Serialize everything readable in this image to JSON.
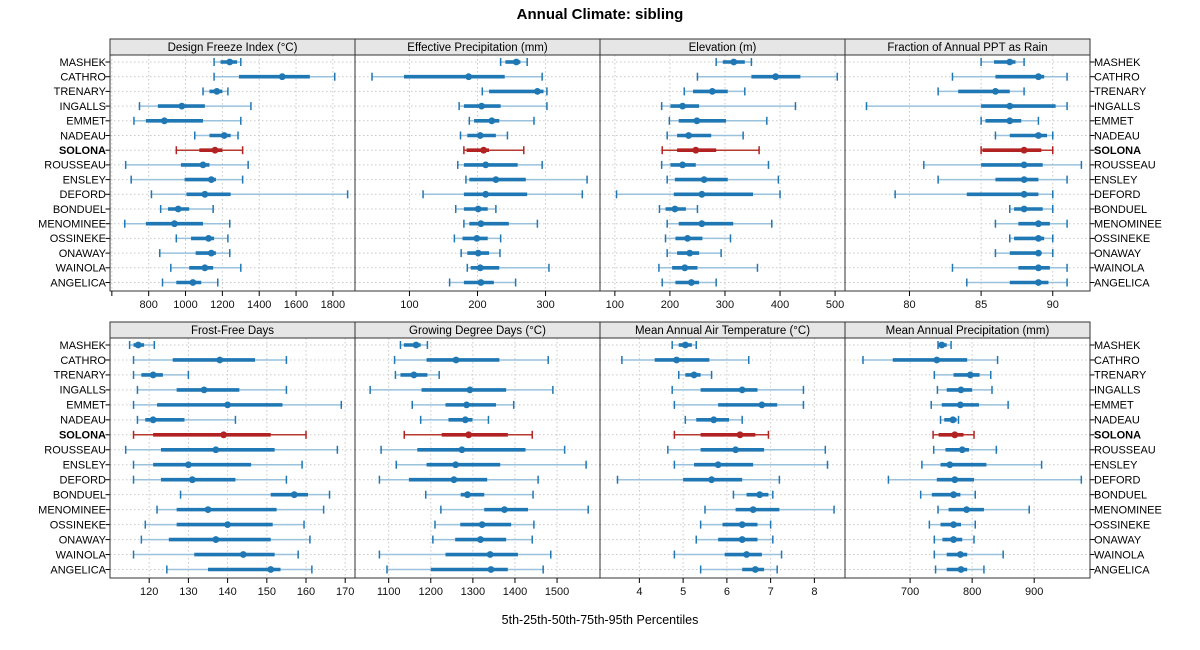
{
  "title": "Annual Climate: sibling",
  "caption": "5th-25th-50th-75th-95th Percentiles",
  "highlight_site": "SOLONA",
  "sites": [
    "MASHEK",
    "CATHRO",
    "TRENARY",
    "INGALLS",
    "EMMET",
    "NADEAU",
    "SOLONA",
    "ROUSSEAU",
    "ENSLEY",
    "DEFORD",
    "BONDUEL",
    "MENOMINEE",
    "OSSINEKE",
    "ONAWAY",
    "WAINOLA",
    "ANGELICA"
  ],
  "colors": {
    "main": "#1f77b4",
    "main_light": "#9ac2dd",
    "highlight": "#b22222",
    "highlight_light": "#b83a2e"
  },
  "chart_data": {
    "type": "dotplot-intervals",
    "percentiles": [
      5,
      25,
      50,
      75,
      95
    ],
    "legend_position": "none",
    "grid": "dotted",
    "panels": [
      {
        "title": "Design Freeze Index (°C)",
        "ticks": [
          800,
          1000,
          1200,
          1400,
          1600,
          1800
        ],
        "extra_ticks": [
          600
        ],
        "xlim": [
          590,
          1920
        ],
        "values": [
          [
            1155,
            1190,
            1240,
            1280,
            1300
          ],
          [
            1155,
            1290,
            1525,
            1675,
            1810
          ],
          [
            1095,
            1130,
            1170,
            1200,
            1230
          ],
          [
            750,
            850,
            980,
            1105,
            1355
          ],
          [
            720,
            785,
            885,
            1095,
            1300
          ],
          [
            1050,
            1130,
            1210,
            1245,
            1285
          ],
          [
            950,
            1075,
            1160,
            1200,
            1310
          ],
          [
            675,
            975,
            1095,
            1130,
            1340
          ],
          [
            705,
            995,
            1140,
            1165,
            1310
          ],
          [
            815,
            1005,
            1105,
            1245,
            1880
          ],
          [
            865,
            905,
            960,
            1020,
            1150
          ],
          [
            670,
            785,
            940,
            1095,
            1240
          ],
          [
            950,
            1030,
            1125,
            1155,
            1230
          ],
          [
            860,
            1055,
            1140,
            1165,
            1240
          ],
          [
            920,
            1020,
            1105,
            1150,
            1300
          ],
          [
            875,
            950,
            1040,
            1085,
            1175
          ]
        ]
      },
      {
        "title": "Effective Precipitation (mm)",
        "ticks": [
          100,
          200,
          300
        ],
        "xlim": [
          20,
          380
        ],
        "values": [
          [
            234,
            241,
            257,
            263,
            273
          ],
          [
            45,
            92,
            187,
            240,
            295
          ],
          [
            207,
            217,
            288,
            297,
            302
          ],
          [
            173,
            180,
            206,
            234,
            302
          ],
          [
            188,
            195,
            221,
            232,
            283
          ],
          [
            175,
            185,
            204,
            227,
            244
          ],
          [
            180,
            184,
            209,
            217,
            268
          ],
          [
            171,
            180,
            212,
            259,
            295
          ],
          [
            183,
            188,
            227,
            271,
            361
          ],
          [
            120,
            180,
            212,
            273,
            354
          ],
          [
            168,
            180,
            201,
            215,
            227
          ],
          [
            180,
            188,
            205,
            246,
            288
          ],
          [
            166,
            178,
            199,
            215,
            234
          ],
          [
            176,
            185,
            201,
            217,
            233
          ],
          [
            185,
            190,
            204,
            232,
            305
          ],
          [
            159,
            180,
            205,
            224,
            256
          ]
        ]
      },
      {
        "title": "Elevation (m)",
        "ticks": [
          100,
          200,
          300,
          400,
          500
        ],
        "xlim": [
          73,
          518
        ],
        "values": [
          [
            284,
            296,
            316,
            336,
            348
          ],
          [
            250,
            348,
            392,
            437,
            504
          ],
          [
            226,
            242,
            277,
            305,
            336
          ],
          [
            185,
            201,
            223,
            253,
            428
          ],
          [
            199,
            216,
            249,
            302,
            376
          ],
          [
            195,
            213,
            234,
            275,
            333
          ],
          [
            186,
            213,
            247,
            284,
            362
          ],
          [
            185,
            201,
            223,
            247,
            379
          ],
          [
            195,
            209,
            262,
            305,
            397
          ],
          [
            103,
            207,
            258,
            351,
            400
          ],
          [
            181,
            192,
            209,
            229,
            250
          ],
          [
            195,
            216,
            258,
            315,
            385
          ],
          [
            192,
            210,
            232,
            259,
            310
          ],
          [
            195,
            213,
            236,
            253,
            293
          ],
          [
            180,
            204,
            227,
            250,
            359
          ],
          [
            186,
            210,
            239,
            253,
            284
          ]
        ]
      },
      {
        "title": "Fraction of Annual PPT as Rain",
        "ticks": [
          80,
          85,
          90
        ],
        "xlim": [
          75.5,
          92.6
        ],
        "values": [
          [
            85,
            85.9,
            87,
            87.4,
            88
          ],
          [
            83,
            86,
            89,
            89.4,
            91
          ],
          [
            82,
            83.4,
            86,
            87,
            88
          ],
          [
            77,
            85,
            87,
            90.2,
            91
          ],
          [
            85,
            85.3,
            87,
            87.8,
            89
          ],
          [
            86,
            87,
            89,
            89.6,
            90
          ],
          [
            85,
            85.1,
            88,
            89.2,
            90
          ],
          [
            81,
            85,
            88,
            89.3,
            92
          ],
          [
            82,
            86,
            88,
            89,
            91
          ],
          [
            79,
            84,
            88,
            89,
            90
          ],
          [
            87,
            87.3,
            88,
            89.3,
            90
          ],
          [
            86,
            87.6,
            89,
            89.8,
            91
          ],
          [
            87,
            87.3,
            89,
            89.4,
            90
          ],
          [
            86,
            87,
            89,
            89.2,
            90
          ],
          [
            83,
            87.6,
            89,
            89.8,
            91
          ],
          [
            84,
            87,
            89,
            89.7,
            91
          ]
        ]
      },
      {
        "title": "Frost-Free Days",
        "ticks": [
          120,
          130,
          140,
          150,
          160,
          170
        ],
        "xlim": [
          110,
          172.5
        ],
        "values": [
          [
            115,
            116,
            117.2,
            118.7,
            121.3
          ],
          [
            116,
            126,
            138,
            147,
            155
          ],
          [
            116,
            118,
            121,
            123.5,
            130
          ],
          [
            117,
            127,
            134,
            143,
            155
          ],
          [
            116,
            122,
            140,
            154,
            169
          ],
          [
            117,
            119,
            121,
            129,
            142
          ],
          [
            116,
            121,
            139,
            151,
            160
          ],
          [
            114,
            123,
            137,
            152,
            168
          ],
          [
            116,
            121,
            130,
            146,
            159
          ],
          [
            116,
            123,
            131,
            142,
            155
          ],
          [
            128,
            151,
            157,
            160.5,
            166
          ],
          [
            122,
            127,
            135,
            152.5,
            164.5
          ],
          [
            119,
            127,
            140,
            151.5,
            159.5
          ],
          [
            118,
            125,
            137,
            151,
            161
          ],
          [
            116,
            131.5,
            144,
            152,
            158
          ],
          [
            124.5,
            135,
            151,
            153.5,
            161.5
          ]
        ]
      },
      {
        "title": "Growing Degree Days (°C)",
        "ticks": [
          1100,
          1200,
          1300,
          1400,
          1500
        ],
        "xlim": [
          1020,
          1602
        ],
        "values": [
          [
            1128,
            1136,
            1165,
            1176,
            1192
          ],
          [
            1114,
            1190,
            1260,
            1363,
            1479
          ],
          [
            1116,
            1128,
            1160,
            1192,
            1220
          ],
          [
            1056,
            1178,
            1293,
            1379,
            1490
          ],
          [
            1156,
            1235,
            1285,
            1355,
            1397
          ],
          [
            1176,
            1242,
            1282,
            1299,
            1337
          ],
          [
            1137,
            1226,
            1290,
            1383,
            1441
          ],
          [
            1082,
            1168,
            1274,
            1425,
            1518
          ],
          [
            1118,
            1190,
            1259,
            1365,
            1569
          ],
          [
            1078,
            1148,
            1255,
            1334,
            1455
          ],
          [
            1188,
            1271,
            1287,
            1327,
            1443
          ],
          [
            1224,
            1327,
            1375,
            1431,
            1574
          ],
          [
            1210,
            1270,
            1322,
            1391,
            1445
          ],
          [
            1205,
            1258,
            1318,
            1379,
            1441
          ],
          [
            1078,
            1235,
            1341,
            1407,
            1485
          ],
          [
            1096,
            1200,
            1343,
            1383,
            1467
          ]
        ]
      },
      {
        "title": "Mean Annual Air Temperature (°C)",
        "ticks": [
          4,
          5,
          6,
          7,
          8
        ],
        "xlim": [
          3.1,
          8.7
        ],
        "values": [
          [
            4.75,
            4.9,
            5.05,
            5.2,
            5.3
          ],
          [
            3.6,
            4.35,
            4.85,
            5.6,
            6.5
          ],
          [
            4.9,
            5.05,
            5.25,
            5.4,
            5.65
          ],
          [
            4.75,
            5.4,
            6.35,
            6.7,
            7.75
          ],
          [
            4.8,
            5.8,
            6.8,
            7.15,
            7.75
          ],
          [
            5.05,
            5.3,
            5.7,
            6.05,
            6.35
          ],
          [
            4.8,
            5.4,
            6.3,
            6.65,
            6.95
          ],
          [
            4.65,
            5.4,
            6.2,
            6.85,
            8.25
          ],
          [
            4.8,
            5.25,
            5.8,
            6.6,
            8.3
          ],
          [
            3.5,
            5.0,
            5.65,
            6.35,
            7.2
          ],
          [
            6.15,
            6.45,
            6.75,
            6.95,
            7.05
          ],
          [
            5.5,
            6.2,
            6.6,
            7.2,
            8.45
          ],
          [
            5.4,
            5.9,
            6.35,
            6.7,
            7.0
          ],
          [
            5.3,
            5.8,
            6.35,
            6.7,
            7.05
          ],
          [
            4.8,
            5.95,
            6.45,
            6.8,
            7.25
          ],
          [
            5.4,
            6.35,
            6.65,
            6.85,
            7.15
          ]
        ]
      },
      {
        "title": "Mean Annual Precipitation (mm)",
        "ticks": [
          700,
          800,
          900
        ],
        "xlim": [
          595,
          990
        ],
        "values": [
          [
            745,
            747,
            751,
            759,
            766
          ],
          [
            624,
            672,
            743,
            792,
            841
          ],
          [
            739,
            770,
            797,
            812,
            830
          ],
          [
            744,
            759,
            782,
            800,
            832
          ],
          [
            734,
            751,
            781,
            811,
            858
          ],
          [
            749,
            755,
            769,
            775,
            778
          ],
          [
            737,
            746,
            772,
            786,
            803
          ],
          [
            738,
            757,
            784,
            795,
            839
          ],
          [
            719,
            749,
            764,
            823,
            912
          ],
          [
            665,
            743,
            772,
            803,
            976
          ],
          [
            717,
            735,
            770,
            781,
            805
          ],
          [
            745,
            762,
            791,
            819,
            892
          ],
          [
            731,
            749,
            770,
            782,
            805
          ],
          [
            739,
            752,
            770,
            784,
            803
          ],
          [
            739,
            759,
            781,
            792,
            850
          ],
          [
            741,
            759,
            782,
            792,
            819
          ]
        ]
      }
    ]
  }
}
